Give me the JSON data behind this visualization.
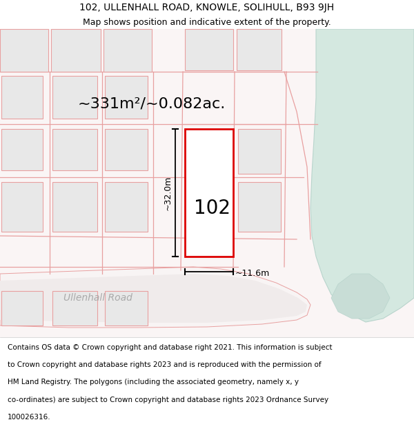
{
  "title_line1": "102, ULLENHALL ROAD, KNOWLE, SOLIHULL, B93 9JH",
  "title_line2": "Map shows position and indicative extent of the property.",
  "area_text": "~331m²/~0.082ac.",
  "label_102": "102",
  "dim_width": "~11.6m",
  "dim_height": "~32.0m",
  "road_label": "Ullenhall Road",
  "footer_lines": [
    "Contains OS data © Crown copyright and database right 2021. This information is subject",
    "to Crown copyright and database rights 2023 and is reproduced with the permission of",
    "HM Land Registry. The polygons (including the associated geometry, namely x, y",
    "co-ordinates) are subject to Crown copyright and database rights 2023 Ordnance Survey",
    "100026316."
  ],
  "map_bg": "#faf5f5",
  "plot_outline_color": "#dd0000",
  "building_fill": "#e8e8e8",
  "parcel_line": "#e8a0a0",
  "green_color": "#d4e8e0",
  "green_edge": "#b8d4cc",
  "road_fill": "#f5f0f0",
  "title_fontsize": 10,
  "subtitle_fontsize": 9,
  "area_fontsize": 16,
  "label_fontsize": 20,
  "dim_fontsize": 9,
  "road_fontsize": 10,
  "footer_fontsize": 7.5
}
